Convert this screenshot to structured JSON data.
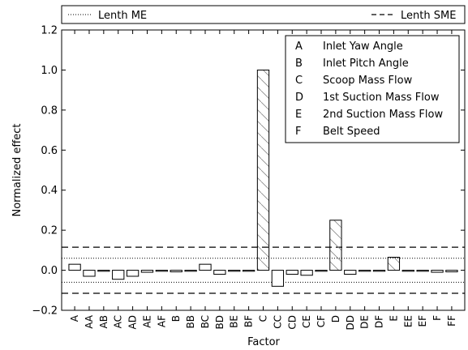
{
  "chart_data": {
    "type": "bar",
    "title": "",
    "xlabel": "Factor",
    "ylabel": "Normalized effect",
    "ylim": [
      -0.2,
      1.2
    ],
    "yticks": [
      -0.2,
      0.0,
      0.2,
      0.4,
      0.6,
      0.8,
      1.0,
      1.2
    ],
    "ytick_labels": [
      "−0.2",
      "0.0",
      "0.2",
      "0.4",
      "0.6",
      "0.8",
      "1.0",
      "1.2"
    ],
    "grid": false,
    "categories": [
      "A",
      "AA",
      "AB",
      "AC",
      "AD",
      "AE",
      "AF",
      "B",
      "BB",
      "BC",
      "BD",
      "BE",
      "BF",
      "C",
      "CC",
      "CD",
      "CE",
      "CF",
      "D",
      "DD",
      "DE",
      "DF",
      "E",
      "EE",
      "EF",
      "F",
      "FF"
    ],
    "values": [
      0.03,
      -0.03,
      -0.005,
      -0.045,
      -0.03,
      -0.01,
      -0.005,
      -0.008,
      -0.005,
      0.03,
      -0.02,
      -0.005,
      -0.005,
      1.0,
      -0.08,
      -0.02,
      -0.025,
      -0.005,
      0.25,
      -0.02,
      -0.005,
      -0.005,
      0.065,
      -0.005,
      -0.005,
      -0.01,
      -0.008
    ],
    "hatched": [
      "C",
      "D",
      "E"
    ],
    "reference_lines": [
      {
        "name": "Lenth ME",
        "style": "dotted",
        "values": [
          0.06,
          -0.06
        ]
      },
      {
        "name": "Lenth SME",
        "style": "dashed",
        "values": [
          0.115,
          -0.115
        ]
      }
    ],
    "top_legend": [
      "Lenth ME",
      "Lenth SME"
    ],
    "factor_legend": [
      {
        "key": "A",
        "label": "Inlet Yaw Angle"
      },
      {
        "key": "B",
        "label": "Inlet Pitch Angle"
      },
      {
        "key": "C",
        "label": "Scoop Mass Flow"
      },
      {
        "key": "D",
        "label": "1st Suction Mass Flow"
      },
      {
        "key": "E",
        "label": "2nd Suction Mass Flow"
      },
      {
        "key": "F",
        "label": "Belt Speed"
      }
    ],
    "legend_position": "top-right",
    "colors": {
      "bar_fill": "#ffffff",
      "bar_edge": "#000000",
      "hatch": "#888888"
    }
  }
}
